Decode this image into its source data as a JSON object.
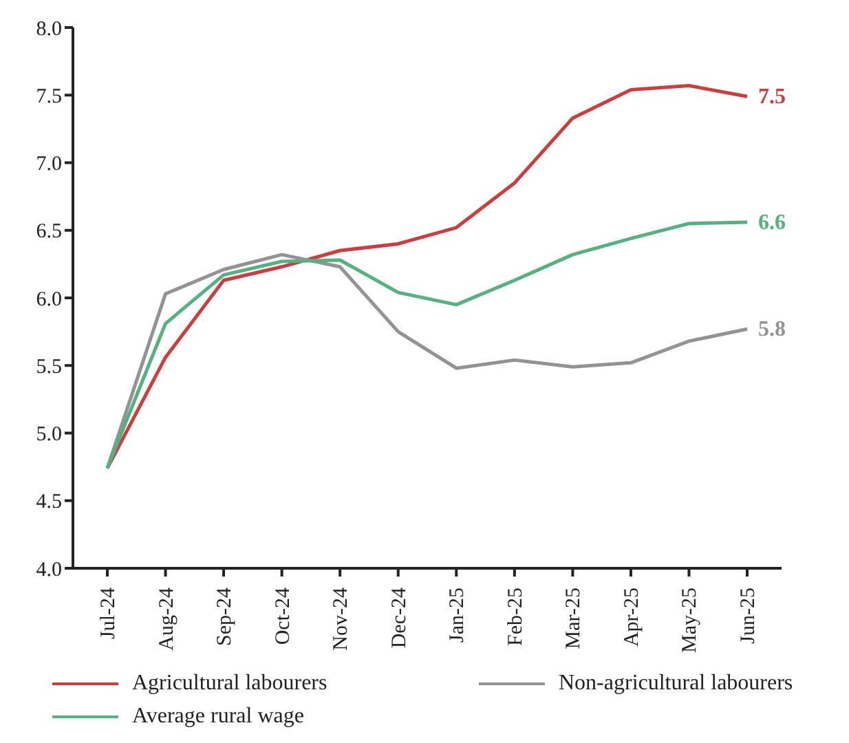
{
  "chart_data": {
    "type": "line",
    "categories": [
      "Jul-24",
      "Aug-24",
      "Sep-24",
      "Oct-24",
      "Nov-24",
      "Dec-24",
      "Jan-25",
      "Feb-25",
      "Mar-25",
      "Apr-25",
      "May-25",
      "Jun-25"
    ],
    "series": [
      {
        "name": "Agricultural labourers",
        "color": "#cc3e3e",
        "values": [
          4.74,
          5.56,
          6.13,
          6.23,
          6.35,
          6.4,
          6.52,
          6.85,
          7.33,
          7.54,
          7.57,
          7.49
        ],
        "value_labels": [
          null,
          null,
          null,
          null,
          null,
          null,
          null,
          null,
          null,
          null,
          null,
          "7.5"
        ]
      },
      {
        "name": "Non-agricultural labourers",
        "color": "#939393",
        "values": [
          4.74,
          6.03,
          6.21,
          6.32,
          6.23,
          5.75,
          5.48,
          5.54,
          5.49,
          5.52,
          5.68,
          5.77
        ],
        "value_labels": [
          null,
          null,
          null,
          null,
          null,
          null,
          null,
          null,
          null,
          null,
          null,
          "5.8"
        ]
      },
      {
        "name": "Average rural wage",
        "color": "#55b181",
        "values": [
          4.74,
          5.81,
          6.17,
          6.27,
          6.28,
          6.04,
          5.95,
          6.13,
          6.32,
          6.44,
          6.55,
          6.56
        ],
        "value_labels": [
          null,
          null,
          null,
          null,
          null,
          null,
          null,
          null,
          null,
          null,
          null,
          "6.6"
        ]
      }
    ],
    "ylim": [
      4.0,
      8.0
    ],
    "yticks": [
      "4.0",
      "4.5",
      "5.0",
      "5.5",
      "6.0",
      "6.5",
      "7.0",
      "7.5",
      "8.0"
    ],
    "grid": false,
    "legend": "bottom",
    "marker": "none",
    "line_style": "solid"
  }
}
